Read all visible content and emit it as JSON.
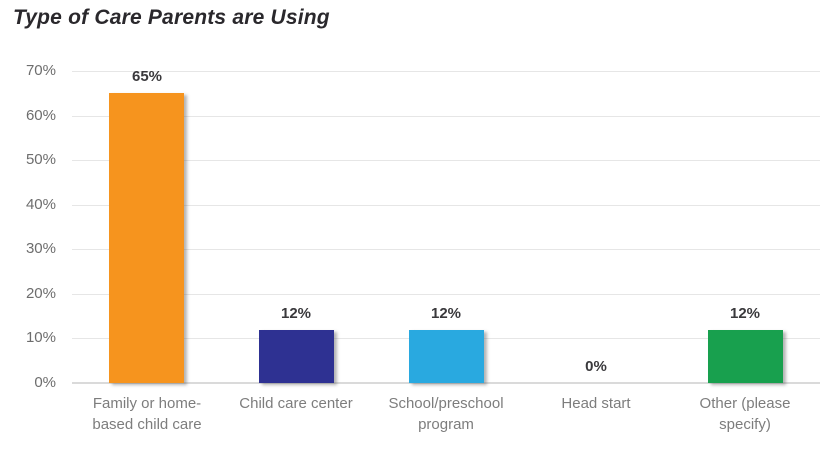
{
  "chart_data": {
    "type": "bar",
    "title": "Type of Care Parents are Using",
    "categories": [
      "Family or home-\nbased child care",
      "Child care center",
      "School/preschool\nprogram",
      "Head start",
      "Other (please\nspecify)"
    ],
    "values": [
      65,
      12,
      12,
      0,
      12
    ],
    "value_labels": [
      "65%",
      "12%",
      "12%",
      "0%",
      "12%"
    ],
    "bar_colors": [
      "#F6941E",
      "#2E3192",
      "#29A9E0",
      null,
      "#18A04E"
    ],
    "y_ticks": [
      "70%",
      "60%",
      "50%",
      "40%",
      "30%",
      "20%",
      "10%",
      "0%"
    ],
    "ylim": [
      0,
      70
    ],
    "xlabel": "",
    "ylabel": "",
    "grid": true,
    "legend": "none",
    "colors": {
      "title_text": "#2a282c",
      "axis_text": "#6d6d6d",
      "category_text": "#7d7d7d",
      "data_label_text": "#3a393c",
      "gridline": "#e6e6e6",
      "background": "#ffffff"
    }
  }
}
